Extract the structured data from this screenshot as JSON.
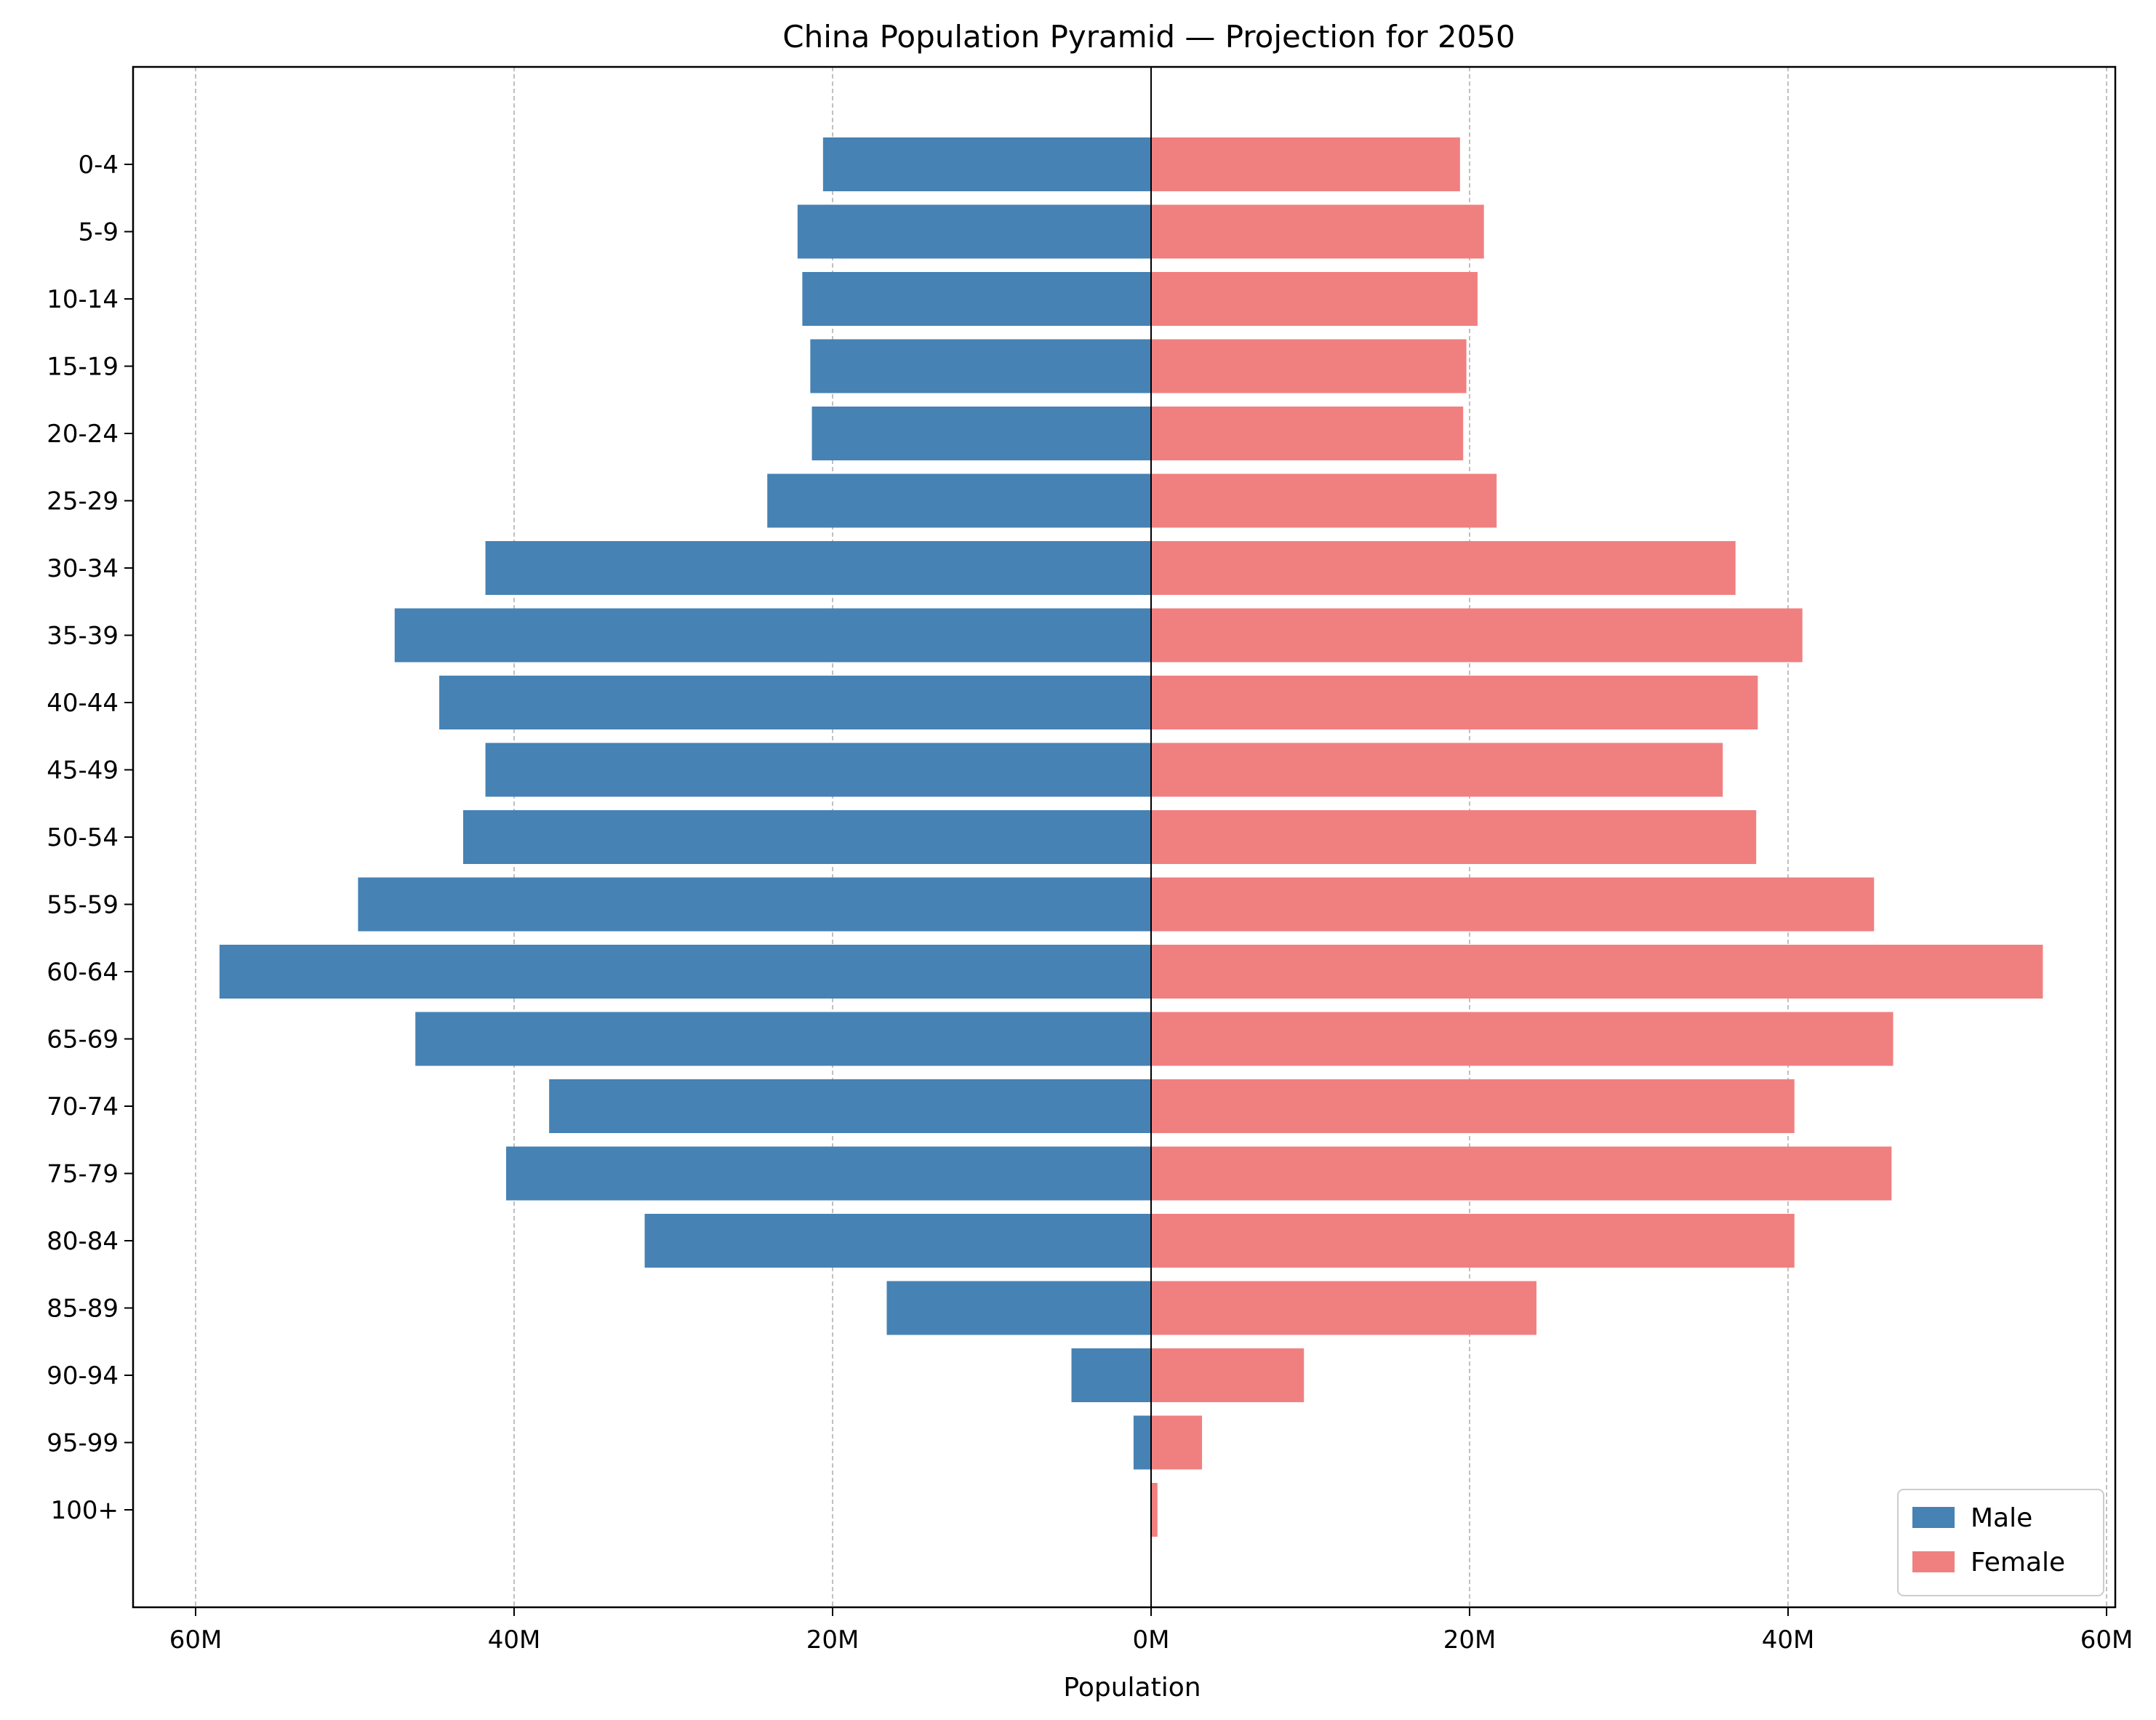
{
  "chart_data": {
    "type": "bar",
    "orientation": "horizontal-diverging",
    "title": "China Population Pyramid — Projection for 2050",
    "xlabel": "Population",
    "ylabel": "",
    "categories": [
      "0-4",
      "5-9",
      "10-14",
      "15-19",
      "20-24",
      "25-29",
      "30-34",
      "35-39",
      "40-44",
      "45-49",
      "50-54",
      "55-59",
      "60-64",
      "65-69",
      "70-74",
      "75-79",
      "80-84",
      "85-89",
      "90-94",
      "95-99",
      "100+"
    ],
    "series": [
      {
        "name": "Male",
        "color": "#4682b4",
        "direction": "left",
        "values": [
          20.6,
          22.2,
          21.9,
          21.4,
          21.3,
          24.1,
          41.8,
          47.5,
          44.7,
          41.8,
          43.2,
          49.8,
          58.5,
          46.2,
          37.8,
          40.5,
          31.8,
          16.6,
          5.0,
          1.1,
          0.05
        ]
      },
      {
        "name": "Female",
        "color": "#f08080",
        "direction": "right",
        "values": [
          19.4,
          20.9,
          20.5,
          19.8,
          19.6,
          21.7,
          36.7,
          40.9,
          38.1,
          35.9,
          38.0,
          45.4,
          56.0,
          46.6,
          40.4,
          46.5,
          40.4,
          24.2,
          9.6,
          3.2,
          0.4
        ]
      }
    ],
    "xlim": [
      -60,
      60
    ],
    "xticks": [
      -60,
      -40,
      -20,
      0,
      20,
      40,
      60
    ],
    "xtick_labels": [
      "60M",
      "40M",
      "20M",
      "0M",
      "20M",
      "40M",
      "60M"
    ],
    "grid": "x-dashed",
    "legend": "lower-right"
  }
}
